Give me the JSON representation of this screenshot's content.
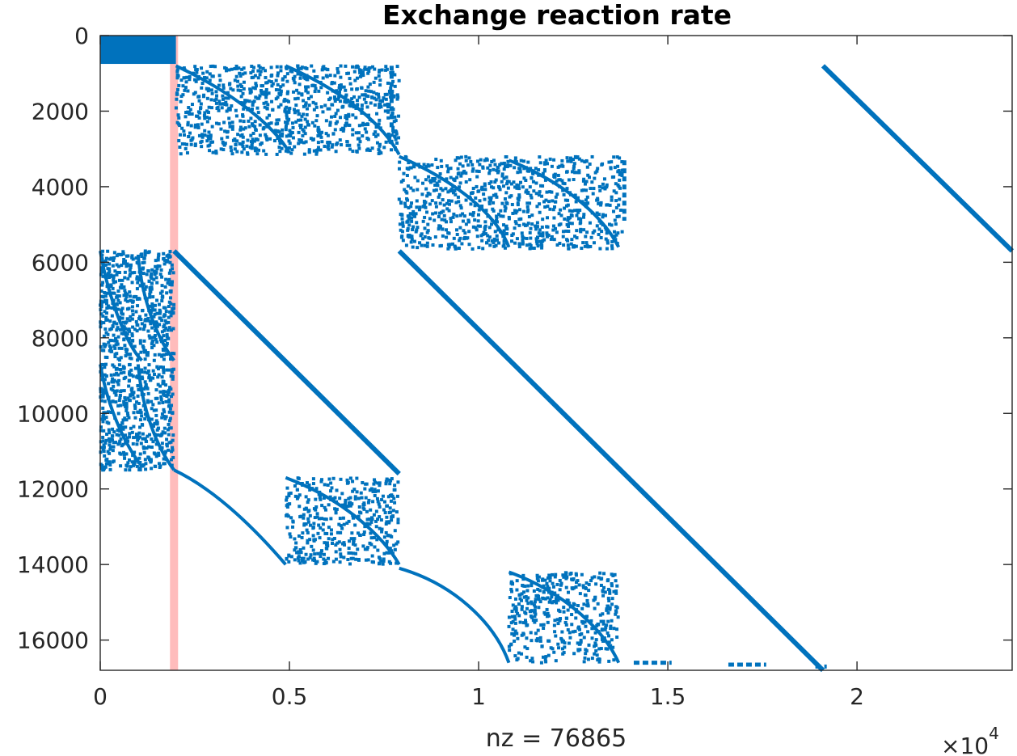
{
  "chart_data": {
    "type": "scatter",
    "subtype": "sparsity-pattern",
    "title": "Exchange reaction rate",
    "xlabel": "nz = 76865",
    "x_exponent": "×10",
    "x_exponent_power": "4",
    "xlim": [
      0,
      24100
    ],
    "ylim": [
      0,
      16800
    ],
    "y_direction": "reversed",
    "grid": false,
    "legend": "none",
    "x_ticks": [
      {
        "value": 0,
        "label": "0"
      },
      {
        "value": 5000,
        "label": "0.5"
      },
      {
        "value": 10000,
        "label": "1"
      },
      {
        "value": 15000,
        "label": "1.5"
      },
      {
        "value": 20000,
        "label": "2"
      }
    ],
    "y_ticks": [
      {
        "value": 0,
        "label": "0"
      },
      {
        "value": 2000,
        "label": "2000"
      },
      {
        "value": 4000,
        "label": "4000"
      },
      {
        "value": 6000,
        "label": "6000"
      },
      {
        "value": 8000,
        "label": "8000"
      },
      {
        "value": 10000,
        "label": "10000"
      },
      {
        "value": 12000,
        "label": "12000"
      },
      {
        "value": 14000,
        "label": "14000"
      },
      {
        "value": 16000,
        "label": "16000"
      }
    ],
    "colors": {
      "marker": "#0072bd",
      "highlight": "#ffbcbc"
    },
    "highlight_column": {
      "x": 1950,
      "y": [
        0,
        16800
      ]
    },
    "dense_blocks": [
      {
        "x": [
          0,
          2000
        ],
        "y": [
          0,
          750
        ]
      }
    ],
    "diagonals": [
      {
        "x": [
          1950,
          7900
        ],
        "y": [
          5700,
          11600
        ]
      },
      {
        "x": [
          7900,
          19100
        ],
        "y": [
          5700,
          16800
        ]
      },
      {
        "x": [
          19100,
          24100
        ],
        "y": [
          800,
          5700
        ]
      }
    ],
    "curves": [
      {
        "points": [
          [
            2000,
            800
          ],
          [
            3500,
            1500
          ],
          [
            4600,
            2400
          ],
          [
            5000,
            3100
          ]
        ]
      },
      {
        "points": [
          [
            4900,
            800
          ],
          [
            6500,
            1500
          ],
          [
            7500,
            2400
          ],
          [
            7900,
            3150
          ]
        ]
      },
      {
        "points": [
          [
            7900,
            3200
          ],
          [
            9500,
            3900
          ],
          [
            10500,
            4800
          ],
          [
            10800,
            5600
          ]
        ]
      },
      {
        "points": [
          [
            10800,
            3300
          ],
          [
            12300,
            3900
          ],
          [
            13300,
            4800
          ],
          [
            13700,
            5600
          ]
        ]
      },
      {
        "points": [
          [
            0,
            5700
          ],
          [
            200,
            6900
          ],
          [
            700,
            8200
          ],
          [
            1100,
            8600
          ]
        ]
      },
      {
        "points": [
          [
            1000,
            5800
          ],
          [
            1100,
            7000
          ],
          [
            1500,
            8000
          ],
          [
            1950,
            8600
          ]
        ]
      },
      {
        "points": [
          [
            0,
            8700
          ],
          [
            200,
            9900
          ],
          [
            700,
            10900
          ],
          [
            1100,
            11400
          ]
        ]
      },
      {
        "points": [
          [
            1000,
            8700
          ],
          [
            1100,
            9900
          ],
          [
            1500,
            10900
          ],
          [
            1950,
            11500
          ]
        ]
      },
      {
        "points": [
          [
            1950,
            11500
          ],
          [
            3200,
            12100
          ],
          [
            4300,
            13300
          ],
          [
            4900,
            14000
          ]
        ]
      },
      {
        "points": [
          [
            4900,
            11700
          ],
          [
            6500,
            12300
          ],
          [
            7500,
            13300
          ],
          [
            7900,
            14000
          ]
        ]
      },
      {
        "points": [
          [
            7900,
            14100
          ],
          [
            9300,
            14500
          ],
          [
            10400,
            15500
          ],
          [
            10800,
            16600
          ]
        ]
      },
      {
        "points": [
          [
            10800,
            14200
          ],
          [
            12200,
            14700
          ],
          [
            13300,
            15700
          ],
          [
            13700,
            16600
          ]
        ]
      }
    ],
    "scattered_blocks": [
      {
        "x": [
          2000,
          5000
        ],
        "y": [
          800,
          3150
        ],
        "density": 460
      },
      {
        "x": [
          4900,
          7900
        ],
        "y": [
          800,
          3150
        ],
        "density": 460
      },
      {
        "x": [
          7900,
          10800
        ],
        "y": [
          3200,
          5650
        ],
        "density": 440
      },
      {
        "x": [
          10800,
          13800
        ],
        "y": [
          3200,
          5650
        ],
        "density": 440
      },
      {
        "x": [
          0,
          1950
        ],
        "y": [
          5700,
          8600
        ],
        "density": 520
      },
      {
        "x": [
          0,
          1950
        ],
        "y": [
          8700,
          11500
        ],
        "density": 480
      },
      {
        "x": [
          4900,
          7900
        ],
        "y": [
          11700,
          14000
        ],
        "density": 420
      },
      {
        "x": [
          10800,
          13700
        ],
        "y": [
          14200,
          16600
        ],
        "density": 420
      }
    ],
    "vertical_segments": [
      {
        "x": 7700,
        "y": [
          800,
          2500
        ]
      },
      {
        "x": 13850,
        "y": [
          3300,
          4900
        ]
      }
    ],
    "bottom_fragments": [
      {
        "x": [
          14100,
          15100
        ],
        "y": 16600
      },
      {
        "x": [
          16600,
          17600
        ],
        "y": 16650
      },
      {
        "x": [
          18900,
          19200
        ],
        "y": 16700
      }
    ]
  }
}
